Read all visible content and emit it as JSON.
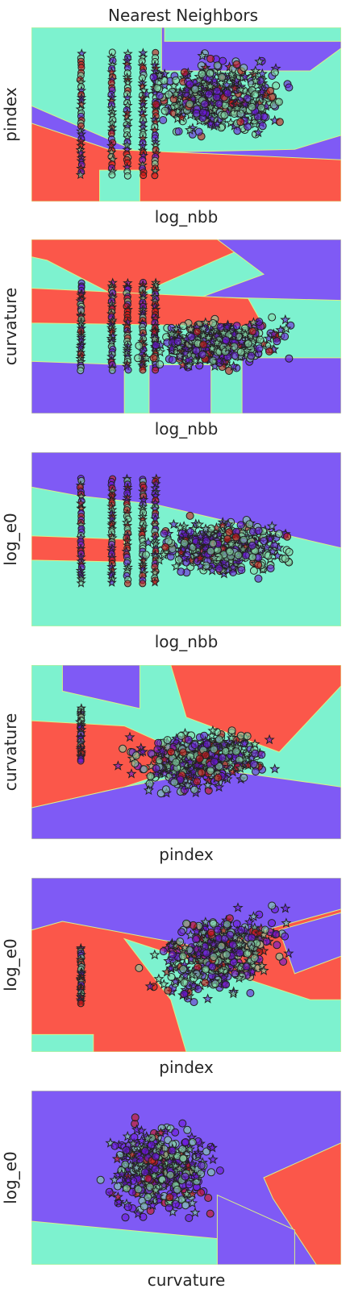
{
  "figure": {
    "title": "Nearest Neighbors"
  },
  "palette": {
    "region_purple": "#7f5af5",
    "region_aqua": "#7df2cf",
    "region_red": "#fb574a",
    "region_yellow_boundary": "#d8f08a",
    "point_purple": "#6a16d8",
    "point_green": "#84d7a6",
    "point_red": "#cf1616",
    "marker_edge": "#222222"
  },
  "chart_data": [
    {
      "type": "scatter",
      "xlabel": "log_nbb",
      "ylabel": "pindex",
      "ticks_shown": false,
      "grid": false,
      "legend": "none",
      "marker_shapes": [
        "circle",
        "star"
      ],
      "background": "decision-regions",
      "point_classes": [
        "purple",
        "green",
        "red"
      ],
      "x_columns": [
        0.16,
        0.26,
        0.31,
        0.36,
        0.4
      ]
    },
    {
      "type": "scatter",
      "xlabel": "log_nbb",
      "ylabel": "curvature",
      "ticks_shown": false,
      "grid": false,
      "legend": "none",
      "marker_shapes": [
        "circle",
        "star"
      ],
      "background": "decision-regions",
      "point_classes": [
        "purple",
        "green",
        "red"
      ],
      "x_columns": [
        0.16,
        0.26,
        0.31,
        0.36,
        0.4
      ]
    },
    {
      "type": "scatter",
      "xlabel": "log_nbb",
      "ylabel": "log_e0",
      "ticks_shown": false,
      "grid": false,
      "legend": "none",
      "marker_shapes": [
        "circle",
        "star"
      ],
      "background": "decision-regions",
      "point_classes": [
        "purple",
        "green",
        "red"
      ],
      "x_columns": [
        0.16,
        0.26,
        0.31,
        0.36,
        0.4
      ]
    },
    {
      "type": "scatter",
      "xlabel": "pindex",
      "ylabel": "curvature",
      "ticks_shown": false,
      "grid": false,
      "legend": "none",
      "marker_shapes": [
        "circle",
        "star"
      ],
      "background": "decision-regions",
      "point_classes": [
        "purple",
        "green",
        "red"
      ]
    },
    {
      "type": "scatter",
      "xlabel": "pindex",
      "ylabel": "log_e0",
      "ticks_shown": false,
      "grid": false,
      "legend": "none",
      "marker_shapes": [
        "circle",
        "star"
      ],
      "background": "decision-regions",
      "point_classes": [
        "purple",
        "green",
        "red"
      ]
    },
    {
      "type": "scatter",
      "xlabel": "curvature",
      "ylabel": "log_e0",
      "ticks_shown": false,
      "grid": false,
      "legend": "none",
      "marker_shapes": [
        "circle",
        "star"
      ],
      "background": "decision-regions",
      "point_classes": [
        "purple",
        "green",
        "red"
      ]
    }
  ]
}
